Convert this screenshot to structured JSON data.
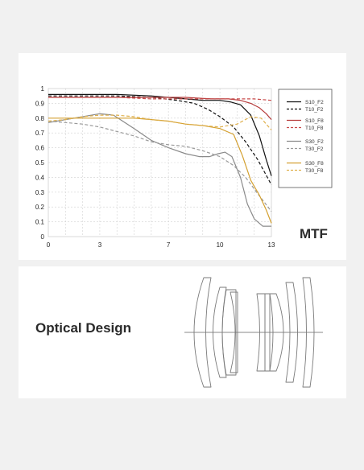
{
  "mtf_panel": {
    "label": "MTF"
  },
  "optical_panel": {
    "title": "Optical Design"
  },
  "chart_data": {
    "type": "line",
    "title": "",
    "xlabel": "",
    "ylabel": "",
    "xlim": [
      0,
      13
    ],
    "ylim": [
      0,
      1
    ],
    "x_ticks": [
      0,
      3,
      7,
      10,
      13
    ],
    "x_tick_labels": [
      "0",
      "3",
      "7",
      "10",
      "13"
    ],
    "y_ticks": [
      0,
      0.1,
      0.2,
      0.3,
      0.4,
      0.5,
      0.6,
      0.7,
      0.8,
      0.9,
      1
    ],
    "y_tick_labels": [
      "0",
      "0.1",
      "0.2",
      "0.3",
      "0.4",
      "0.5",
      "0.6",
      "0.7",
      "0.8",
      "0.9",
      "1"
    ],
    "grid": true,
    "legend_position": "right",
    "series": [
      {
        "name": "S10_F2",
        "color": "#111111",
        "dash": "solid",
        "x": [
          0,
          2,
          4,
          6,
          8,
          9,
          10,
          10.6,
          11.2,
          11.8,
          12.3,
          12.7,
          13
        ],
        "y": [
          0.96,
          0.96,
          0.96,
          0.95,
          0.93,
          0.92,
          0.92,
          0.91,
          0.89,
          0.82,
          0.68,
          0.52,
          0.41
        ]
      },
      {
        "name": "T10_F2",
        "color": "#111111",
        "dash": "dashed",
        "x": [
          0,
          2,
          4,
          6,
          7.5,
          8.5,
          9.3,
          10,
          10.8,
          11.5,
          12.2,
          13
        ],
        "y": [
          0.95,
          0.95,
          0.95,
          0.94,
          0.92,
          0.9,
          0.86,
          0.81,
          0.74,
          0.64,
          0.52,
          0.35
        ]
      },
      {
        "name": "S10_F8",
        "color": "#b63a3a",
        "dash": "solid",
        "x": [
          0,
          2,
          4,
          6,
          8,
          9.5,
          10.5,
          11.2,
          11.8,
          12.3,
          12.7,
          13
        ],
        "y": [
          0.94,
          0.94,
          0.94,
          0.94,
          0.94,
          0.93,
          0.93,
          0.92,
          0.9,
          0.87,
          0.83,
          0.79
        ]
      },
      {
        "name": "T10_F8",
        "color": "#c84a4a",
        "dash": "dashed",
        "x": [
          0,
          2,
          4,
          6,
          8,
          10,
          11,
          12,
          13
        ],
        "y": [
          0.94,
          0.94,
          0.94,
          0.93,
          0.93,
          0.93,
          0.93,
          0.93,
          0.92
        ]
      },
      {
        "name": "S30_F2",
        "color": "#8a8a8a",
        "dash": "solid",
        "x": [
          0,
          1,
          2,
          3,
          3.8,
          5,
          6,
          7,
          8,
          8.8,
          9.4,
          9.9,
          10.3,
          10.7,
          11.2,
          11.6,
          12,
          12.5,
          13
        ],
        "y": [
          0.77,
          0.79,
          0.81,
          0.83,
          0.82,
          0.73,
          0.65,
          0.6,
          0.56,
          0.54,
          0.54,
          0.56,
          0.57,
          0.54,
          0.4,
          0.22,
          0.12,
          0.07,
          0.07
        ]
      },
      {
        "name": "T30_F2",
        "color": "#9a9a9a",
        "dash": "dashed",
        "x": [
          0,
          1,
          2,
          3,
          4,
          5,
          6,
          7,
          8,
          9,
          10,
          10.8,
          11.5,
          12.2,
          13
        ],
        "y": [
          0.78,
          0.77,
          0.76,
          0.74,
          0.71,
          0.68,
          0.64,
          0.62,
          0.61,
          0.58,
          0.54,
          0.48,
          0.4,
          0.29,
          0.17
        ]
      },
      {
        "name": "S30_F8",
        "color": "#d4a030",
        "dash": "solid",
        "x": [
          0,
          1,
          2,
          3,
          4,
          5,
          6,
          7,
          8,
          9,
          10,
          10.8,
          11.3,
          11.8,
          12.3,
          12.7,
          13
        ],
        "y": [
          0.8,
          0.8,
          0.8,
          0.8,
          0.8,
          0.8,
          0.79,
          0.78,
          0.76,
          0.75,
          0.73,
          0.69,
          0.55,
          0.38,
          0.28,
          0.18,
          0.09
        ]
      },
      {
        "name": "T30_F8",
        "color": "#dfb04c",
        "dash": "dashed",
        "x": [
          0,
          1,
          2,
          3,
          4,
          5,
          6,
          7,
          8,
          9,
          10,
          11,
          11.8,
          12.4,
          13
        ],
        "y": [
          0.78,
          0.79,
          0.81,
          0.82,
          0.82,
          0.81,
          0.79,
          0.78,
          0.76,
          0.75,
          0.74,
          0.76,
          0.81,
          0.8,
          0.72
        ]
      }
    ]
  }
}
